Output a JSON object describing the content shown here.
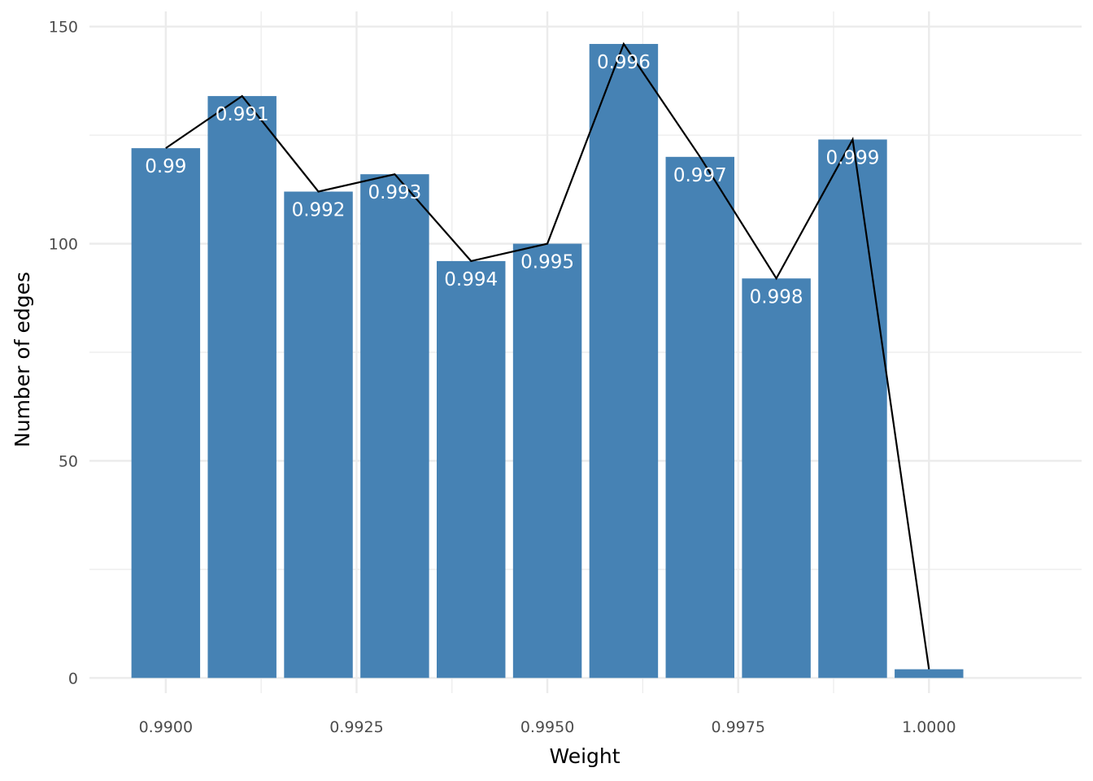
{
  "chart_data": {
    "type": "bar",
    "x": [
      0.99,
      0.991,
      0.992,
      0.993,
      0.994,
      0.995,
      0.996,
      0.997,
      0.998,
      0.999,
      1.0
    ],
    "values": [
      122,
      134,
      112,
      116,
      96,
      100,
      146,
      120,
      92,
      124,
      2
    ],
    "bar_labels": [
      "0.99",
      "0.991",
      "0.992",
      "0.993",
      "0.994",
      "0.995",
      "0.996",
      "0.997",
      "0.998",
      "0.999",
      ""
    ],
    "overlay": {
      "type": "line",
      "values": [
        122,
        134,
        112,
        116,
        96,
        100,
        146,
        120,
        92,
        124,
        2
      ]
    },
    "title": "",
    "xlabel": "Weight",
    "ylabel": "Number of edges",
    "xlim": [
      0.989,
      1.002
    ],
    "ylim": [
      -3.5,
      153.5
    ],
    "xticks": [
      0.99,
      0.9925,
      0.995,
      0.9975,
      1.0
    ],
    "xtick_labels": [
      "0.9900",
      "0.9925",
      "0.9950",
      "0.9975",
      "1.0000"
    ],
    "yticks": [
      0,
      50,
      100,
      150
    ],
    "ytick_labels": [
      "0",
      "50",
      "100",
      "150"
    ],
    "grid": true,
    "legend": "none",
    "colors": {
      "bar": "#4682b4",
      "line": "#000000",
      "grid": "#ebebeb",
      "label": "#ffffff"
    }
  }
}
